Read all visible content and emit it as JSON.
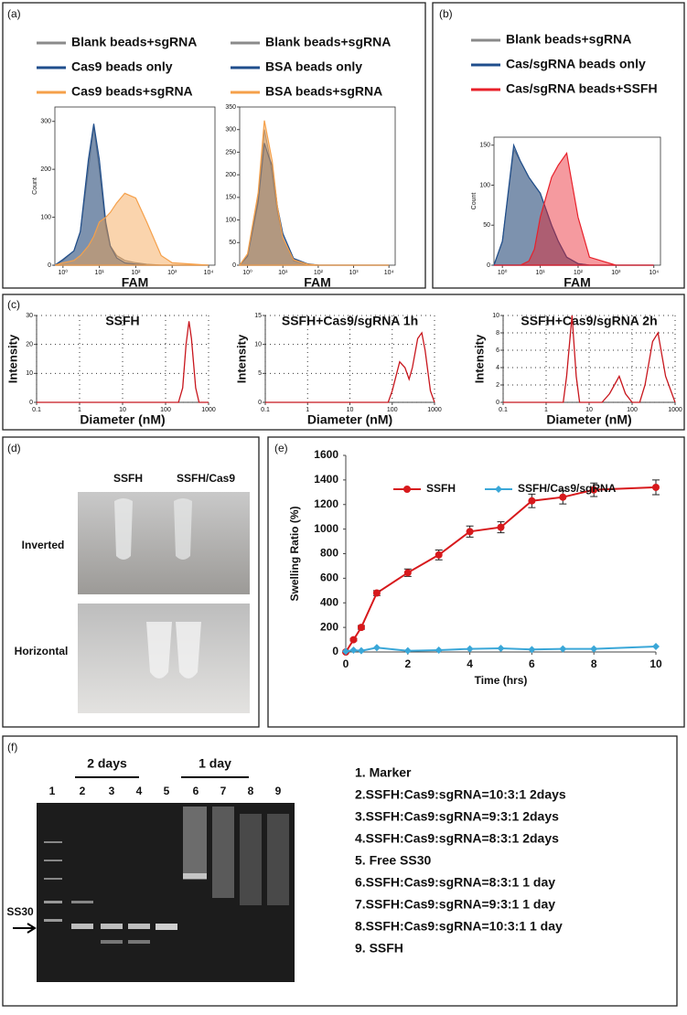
{
  "panel_labels": [
    "(a)",
    "(b)",
    "(c)",
    "(d)",
    "(e)",
    "(f)"
  ],
  "chart_data": [
    {
      "type": "area",
      "xscale": "log",
      "x_label": "FAM",
      "y_label": "Count",
      "xlim": [
        0.6,
        15000
      ],
      "ylim": [
        0,
        330
      ],
      "xticks": [
        {
          "value": 1,
          "label": "10⁰"
        },
        {
          "value": 10,
          "label": "10¹"
        },
        {
          "value": 100,
          "label": "10²"
        },
        {
          "value": 1000,
          "label": "10³"
        },
        {
          "value": 10000,
          "label": "10⁴"
        }
      ],
      "yticks": [
        0,
        100,
        200,
        300
      ],
      "x": [
        0.6,
        1,
        2,
        3,
        5,
        7,
        10,
        15,
        20,
        30,
        50,
        100,
        200,
        500,
        1000,
        10000
      ],
      "series": [
        {
          "name": "Blank beads+sgRNA",
          "color": "#8a8a8a",
          "values": [
            0,
            10,
            30,
            70,
            200,
            290,
            200,
            80,
            40,
            20,
            10,
            5,
            2,
            0,
            0,
            0
          ]
        },
        {
          "name": "Cas9 beads only",
          "color": "#1f4e8c",
          "values": [
            0,
            12,
            30,
            70,
            220,
            295,
            220,
            90,
            40,
            15,
            5,
            2,
            0,
            0,
            0,
            0
          ]
        },
        {
          "name": "Cas9 beads+sgRNA",
          "color": "#f5a04a",
          "values": [
            0,
            5,
            10,
            20,
            40,
            60,
            90,
            100,
            110,
            130,
            150,
            140,
            90,
            20,
            5,
            0
          ]
        }
      ]
    },
    {
      "type": "area",
      "xscale": "log",
      "x_label": "FAM",
      "xlim": [
        0.6,
        15000
      ],
      "ylim": [
        0,
        350
      ],
      "xticks": [
        {
          "value": 1,
          "label": "10⁰"
        },
        {
          "value": 10,
          "label": "10¹"
        },
        {
          "value": 100,
          "label": "10²"
        },
        {
          "value": 1000,
          "label": "10³"
        },
        {
          "value": 10000,
          "label": "10⁴"
        }
      ],
      "yticks": [
        0,
        50,
        100,
        150,
        200,
        250,
        300,
        350
      ],
      "x": [
        0.6,
        1,
        2,
        3,
        4,
        5,
        7,
        10,
        20,
        50,
        100,
        1000,
        10000
      ],
      "series": [
        {
          "name": "Blank beads+sgRNA",
          "color": "#8a8a8a",
          "values": [
            0,
            20,
            150,
            300,
            250,
            200,
            120,
            60,
            10,
            2,
            0,
            0,
            0
          ]
        },
        {
          "name": "BSA beads only",
          "color": "#1f4e8c",
          "values": [
            0,
            20,
            140,
            270,
            240,
            220,
            130,
            70,
            15,
            3,
            0,
            0,
            0
          ]
        },
        {
          "name": "BSA beads+sgRNA",
          "color": "#f5a04a",
          "values": [
            0,
            25,
            160,
            320,
            270,
            230,
            130,
            60,
            12,
            2,
            0,
            0,
            0
          ]
        }
      ]
    },
    {
      "type": "area",
      "xscale": "log",
      "x_label": "FAM",
      "y_label": "Count",
      "xlim": [
        0.6,
        15000
      ],
      "ylim": [
        0,
        160
      ],
      "xticks": [
        {
          "value": 1,
          "label": "10⁰"
        },
        {
          "value": 10,
          "label": "10¹"
        },
        {
          "value": 100,
          "label": "10²"
        },
        {
          "value": 1000,
          "label": "10³"
        },
        {
          "value": 10000,
          "label": "10⁴"
        }
      ],
      "yticks": [
        0,
        50,
        100,
        150
      ],
      "x": [
        0.6,
        1,
        2,
        3,
        5,
        7,
        10,
        20,
        30,
        50,
        100,
        200,
        1000,
        10000
      ],
      "series": [
        {
          "name": "Blank beads+sgRNA",
          "color": "#8a8a8a",
          "values": [
            0,
            30,
            145,
            130,
            110,
            100,
            90,
            50,
            30,
            10,
            2,
            0,
            0,
            0
          ]
        },
        {
          "name": "Cas/sgRNA beads only",
          "color": "#1f4e8c",
          "values": [
            0,
            30,
            150,
            130,
            110,
            100,
            90,
            50,
            30,
            10,
            2,
            0,
            0,
            0
          ]
        },
        {
          "name": "Cas/sgRNA beads+SSFH",
          "color": "#e8202a",
          "values": [
            0,
            0,
            0,
            0,
            5,
            20,
            60,
            110,
            125,
            140,
            60,
            10,
            0,
            0
          ]
        }
      ]
    },
    {
      "type": "line",
      "xscale": "log",
      "grid": true,
      "title": "SSFH",
      "x_label": "Diameter (nM)",
      "y_label": "Intensity",
      "xlim": [
        0.1,
        1000
      ],
      "ylim": [
        0,
        30
      ],
      "xticks": [
        0.1,
        1,
        10,
        100,
        1000
      ],
      "yticks": [
        0,
        10,
        20,
        30
      ],
      "x": [
        0.1,
        200,
        250,
        300,
        350,
        400,
        500,
        600,
        1000
      ],
      "series": [
        {
          "color": "#c8161d",
          "values": [
            0,
            0,
            5,
            20,
            28,
            22,
            5,
            0,
            0
          ]
        }
      ]
    },
    {
      "type": "line",
      "xscale": "log",
      "grid": true,
      "title": "SSFH+Cas9/sgRNA 1h",
      "x_label": "Diameter (nM)",
      "y_label": "Intensity",
      "xlim": [
        0.1,
        1000
      ],
      "ylim": [
        0,
        15
      ],
      "xticks": [
        0.1,
        1,
        10,
        100,
        1000
      ],
      "yticks": [
        0,
        5,
        10,
        15
      ],
      "x": [
        0.1,
        80,
        100,
        150,
        200,
        250,
        300,
        400,
        500,
        600,
        800,
        1000
      ],
      "series": [
        {
          "color": "#c8161d",
          "values": [
            0,
            0,
            2,
            7,
            6,
            4,
            6,
            11,
            12,
            9,
            2,
            0
          ]
        }
      ]
    },
    {
      "type": "line",
      "xscale": "log",
      "grid": true,
      "title": "SSFH+Cas9/sgRNA 2h",
      "x_label": "Diameter (nM)",
      "y_label": "Intensity",
      "xlim": [
        0.1,
        1000
      ],
      "ylim": [
        0,
        10
      ],
      "xticks": [
        0.1,
        1,
        10,
        100,
        1000
      ],
      "yticks": [
        0,
        2,
        4,
        6,
        8,
        10
      ],
      "x": [
        0.1,
        2.5,
        3,
        4,
        5,
        6,
        20,
        30,
        50,
        70,
        100,
        150,
        200,
        300,
        400,
        600,
        1000
      ],
      "series": [
        {
          "color": "#c8161d",
          "values": [
            0,
            0,
            3,
            10,
            3,
            0,
            0,
            1,
            3,
            1,
            0,
            0,
            2,
            7,
            8,
            3,
            0
          ]
        }
      ]
    },
    {
      "type": "line",
      "x_label": "Time (hrs)",
      "y_label": "Swelling Ratio (%)",
      "xlim": [
        0,
        10
      ],
      "ylim": [
        0,
        1600
      ],
      "xticks": [
        0,
        2,
        4,
        6,
        8,
        10
      ],
      "yticks": [
        0,
        200,
        400,
        600,
        800,
        1000,
        1200,
        1400,
        1600
      ],
      "x": [
        0,
        0.25,
        0.5,
        1,
        2,
        3,
        4,
        5,
        6,
        7,
        8,
        10
      ],
      "series": [
        {
          "name": "SSFH",
          "color": "#d7191c",
          "marker": "circle",
          "values": [
            0,
            100,
            200,
            480,
            645,
            790,
            980,
            1015,
            1230,
            1260,
            1320,
            1340
          ],
          "errors": [
            0,
            10,
            15,
            20,
            30,
            40,
            45,
            45,
            55,
            55,
            55,
            60
          ]
        },
        {
          "name": "SSFH/Cas9/sgRNA",
          "color": "#3aa7d8",
          "marker": "diamond",
          "values": [
            5,
            15,
            10,
            35,
            10,
            15,
            25,
            30,
            20,
            25,
            25,
            45
          ]
        }
      ]
    }
  ],
  "panel_d": {
    "columns": [
      "SSFH",
      "SSFH/Cas9"
    ],
    "rows": [
      "Inverted",
      "Horizontal"
    ]
  },
  "panel_f": {
    "groups": [
      "2 days",
      "1 day"
    ],
    "lanes": [
      "1",
      "2",
      "3",
      "4",
      "5",
      "6",
      "7",
      "8",
      "9"
    ],
    "marker": "SS30",
    "legend": [
      "1. Marker",
      "2.SSFH:Cas9:sgRNA=10:3:1  2days",
      "3.SSFH:Cas9:sgRNA=9:3:1  2days",
      "4.SSFH:Cas9:sgRNA=8:3:1  2days",
      "5. Free SS30",
      "6.SSFH:Cas9:sgRNA=8:3:1  1 day",
      "7.SSFH:Cas9:sgRNA=9:3:1  1 day",
      "8.SSFH:Cas9:sgRNA=10:3:1  1 day",
      "9. SSFH"
    ]
  }
}
